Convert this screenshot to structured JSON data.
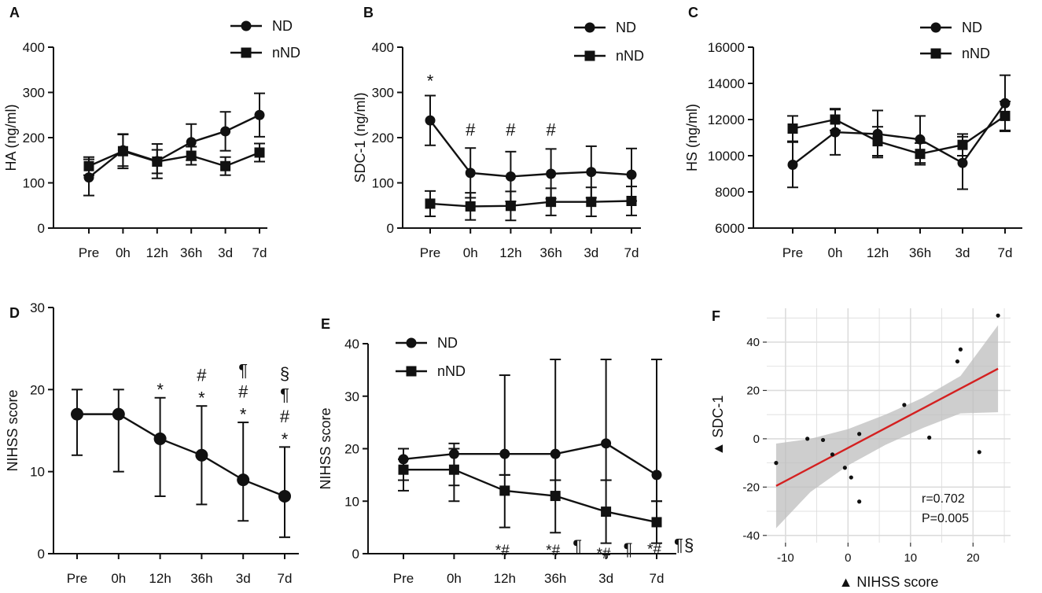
{
  "chart_data": [
    {
      "panel": "A",
      "type": "line",
      "ylabel": "HA (ng/ml)",
      "categories": [
        "Pre",
        "0h",
        "12h",
        "36h",
        "3d",
        "7d"
      ],
      "ylim": [
        0,
        400
      ],
      "yticks": [
        0,
        100,
        200,
        300,
        400
      ],
      "legend": "top-center",
      "series": [
        {
          "name": "ND",
          "marker": "circle",
          "values": [
            112,
            172,
            148,
            190,
            214,
            250
          ],
          "err": [
            40,
            35,
            38,
            40,
            43,
            48
          ]
        },
        {
          "name": "nND",
          "marker": "square",
          "values": [
            137,
            170,
            147,
            160,
            137,
            167
          ],
          "err": [
            20,
            38,
            26,
            20,
            20,
            20
          ]
        }
      ],
      "annotations": []
    },
    {
      "panel": "B",
      "type": "line",
      "ylabel": "SDC-1 (ng/ml)",
      "categories": [
        "Pre",
        "0h",
        "12h",
        "36h",
        "3d",
        "7d"
      ],
      "ylim": [
        0,
        400
      ],
      "yticks": [
        0,
        100,
        200,
        300,
        400
      ],
      "legend": "top-right",
      "series": [
        {
          "name": "ND",
          "marker": "circle",
          "values": [
            238,
            122,
            114,
            120,
            124,
            118
          ],
          "err": [
            55,
            55,
            55,
            55,
            57,
            58
          ]
        },
        {
          "name": "nND",
          "marker": "square",
          "values": [
            54,
            48,
            49,
            58,
            58,
            60
          ],
          "err": [
            28,
            30,
            32,
            30,
            32,
            32
          ]
        }
      ],
      "annotations": [
        {
          "cat": "Pre",
          "y": 330,
          "text": "*"
        },
        {
          "cat": "0h",
          "y": 215,
          "text": "#"
        },
        {
          "cat": "12h",
          "y": 215,
          "text": "#"
        },
        {
          "cat": "36h",
          "y": 215,
          "text": "#"
        }
      ]
    },
    {
      "panel": "C",
      "type": "line",
      "ylabel": "HS (ng/ml)",
      "categories": [
        "Pre",
        "0h",
        "12h",
        "36h",
        "3d",
        "7d"
      ],
      "ylim": [
        6000,
        16000
      ],
      "yticks": [
        6000,
        8000,
        10000,
        12000,
        14000,
        16000
      ],
      "legend": "top-right",
      "series": [
        {
          "name": "ND",
          "marker": "circle",
          "values": [
            9500,
            11300,
            11200,
            10900,
            9600,
            12900
          ],
          "err": [
            1250,
            1250,
            1300,
            1300,
            1450,
            1550
          ]
        },
        {
          "name": "nND",
          "marker": "square",
          "values": [
            11500,
            12000,
            10800,
            10100,
            10600,
            12200
          ],
          "err": [
            700,
            600,
            800,
            600,
            600,
            800
          ]
        }
      ],
      "annotations": []
    },
    {
      "panel": "D",
      "type": "line",
      "ylabel": "NIHSS score",
      "categories": [
        "Pre",
        "0h",
        "12h",
        "36h",
        "3d",
        "7d"
      ],
      "ylim": [
        0,
        30
      ],
      "yticks": [
        0,
        10,
        20,
        30
      ],
      "series": [
        {
          "name": "",
          "marker": "circle",
          "values": [
            17,
            17,
            14,
            12,
            9,
            7
          ],
          "err_low": [
            5,
            7,
            7,
            6,
            5,
            5
          ],
          "err_high": [
            3,
            3,
            5,
            6,
            7,
            6
          ]
        }
      ],
      "annotations": [
        {
          "cat": "12h",
          "text": "*",
          "y": 20.2
        },
        {
          "cat": "36h",
          "text": "*",
          "y": 19.2
        },
        {
          "cat": "36h",
          "text": "#",
          "y": 21.6
        },
        {
          "cat": "3d",
          "text": "*",
          "y": 17.2
        },
        {
          "cat": "3d",
          "text": "#",
          "y": 19.6
        },
        {
          "cat": "3d",
          "text": "¶",
          "y": 22.2
        },
        {
          "cat": "7d",
          "text": "*",
          "y": 14.2
        },
        {
          "cat": "7d",
          "text": "#",
          "y": 16.6
        },
        {
          "cat": "7d",
          "text": "¶",
          "y": 19.2
        },
        {
          "cat": "7d",
          "text": "§",
          "y": 21.8
        }
      ]
    },
    {
      "panel": "E",
      "type": "line",
      "ylabel": "NIHSS score",
      "categories": [
        "Pre",
        "0h",
        "12h",
        "36h",
        "3d",
        "7d"
      ],
      "ylim": [
        0,
        40
      ],
      "yticks": [
        0,
        10,
        20,
        30,
        40
      ],
      "legend": "top-left",
      "series": [
        {
          "name": "ND",
          "marker": "circle",
          "values": [
            18,
            19,
            19,
            19,
            21,
            15
          ],
          "err_low": [
            4,
            6,
            4,
            5,
            7,
            5
          ],
          "err_high": [
            2,
            2,
            15,
            18,
            16,
            22
          ]
        },
        {
          "name": "nND",
          "marker": "square",
          "values": [
            16,
            16,
            12,
            11,
            8,
            6
          ],
          "err_low": [
            4,
            6,
            7,
            7,
            6,
            4
          ],
          "err_high": [
            2,
            4,
            3,
            3,
            6,
            4
          ]
        }
      ],
      "annotations": [
        {
          "cat": "12h",
          "text": "*#",
          "y": 1.2
        },
        {
          "cat": "36h",
          "text": "*#",
          "y": 1.2
        },
        {
          "cat": "36h",
          "text": "¶",
          "y": 1.2,
          "dx": 1
        },
        {
          "cat": "3d",
          "text": "*#",
          "y": 0.6
        },
        {
          "cat": "3d",
          "text": "¶",
          "y": 0.6,
          "dx": 1
        },
        {
          "cat": "7d",
          "text": "*#",
          "y": 1.4
        },
        {
          "cat": "7d",
          "text": "¶",
          "y": 1.4,
          "dx": 1
        },
        {
          "cat": "7d",
          "text": "§",
          "y": 1.4,
          "dx": 2
        }
      ]
    },
    {
      "panel": "F",
      "type": "scatter",
      "xlabel": "▲ NIHSS score",
      "ylabel": "▲ SDC-1",
      "xlim": [
        -13,
        26
      ],
      "ylim": [
        -43,
        54
      ],
      "xticks": [
        -10,
        0,
        10,
        20
      ],
      "yticks": [
        -40,
        -20,
        0,
        20,
        40
      ],
      "points": [
        [
          -11.5,
          -10
        ],
        [
          -6.5,
          0
        ],
        [
          -4,
          -0.5
        ],
        [
          -2.5,
          -6.5
        ],
        [
          -0.5,
          -12
        ],
        [
          0.5,
          -16
        ],
        [
          1.8,
          2
        ],
        [
          1.8,
          -26
        ],
        [
          9,
          14
        ],
        [
          13,
          0.5
        ],
        [
          17.5,
          32
        ],
        [
          18,
          37
        ],
        [
          21,
          -5.5
        ],
        [
          24,
          51
        ]
      ],
      "fit": {
        "x": [
          -11.5,
          24
        ],
        "y": [
          -19.5,
          29
        ]
      },
      "band": {
        "x": [
          -11.5,
          -6,
          0,
          6,
          12,
          18,
          24
        ],
        "upper": [
          -2,
          0,
          4,
          10,
          17,
          26,
          47
        ],
        "lower": [
          -37,
          -22,
          -11,
          -2.5,
          4.5,
          10.5,
          11
        ]
      },
      "stats": {
        "r": "r=0.702",
        "p": "P=0.005"
      },
      "fit_color": "#d42020",
      "band_color": "#bdbdbd",
      "panel_bg": "#ffffff",
      "grid_color": "#dcdcdc"
    }
  ]
}
